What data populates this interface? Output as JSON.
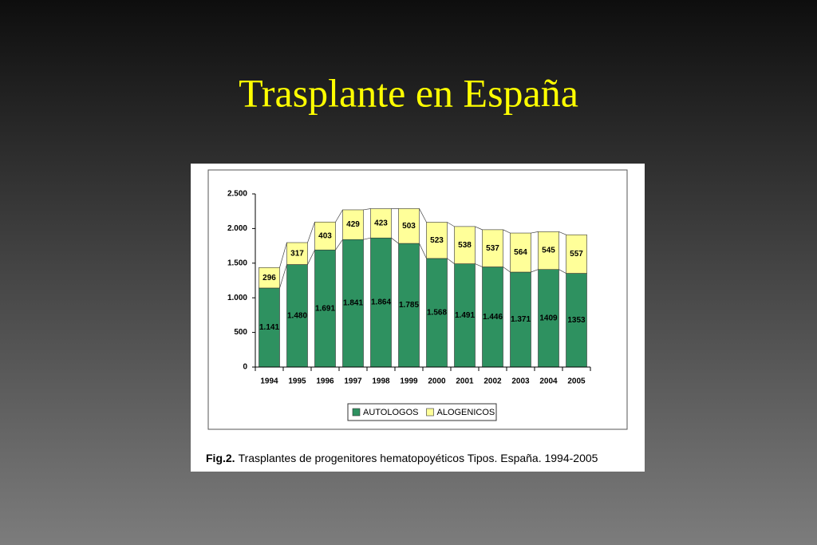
{
  "chart_data": {
    "type": "stacked_bar",
    "title": "Trasplante en España",
    "caption_label": "Fig.2.",
    "caption": "Trasplantes de progenitores hematopoyéticos Tipos. España. 1994-2005",
    "categories": [
      "1994",
      "1995",
      "1996",
      "1997",
      "1998",
      "1999",
      "2000",
      "2001",
      "2002",
      "2003",
      "2004",
      "2005"
    ],
    "series": [
      {
        "name": "AUTOLOGOS",
        "color": "#2e9160",
        "values": [
          1141,
          1480,
          1691,
          1841,
          1864,
          1785,
          1568,
          1491,
          1446,
          1371,
          1409,
          1353
        ],
        "value_labels": [
          "1.141",
          "1.480",
          "1.691",
          "1.841",
          "1.864",
          "1.785",
          "1.568",
          "1.491",
          "1.446",
          "1.371",
          "1409",
          "1353"
        ]
      },
      {
        "name": "ALOGENICOS",
        "color": "#ffff99",
        "values": [
          296,
          317,
          403,
          429,
          423,
          503,
          523,
          538,
          537,
          564,
          545,
          557
        ]
      }
    ],
    "ylim": [
      0,
      2500
    ],
    "yticks": [
      0,
      500,
      {
        "value": 1000,
        "label": "1.000"
      },
      {
        "value": 1500,
        "label": "1.500"
      },
      {
        "value": 2000,
        "label": "2.000"
      },
      {
        "value": 2500,
        "label": "2.500"
      }
    ],
    "grid": false,
    "legend": "bottom"
  }
}
